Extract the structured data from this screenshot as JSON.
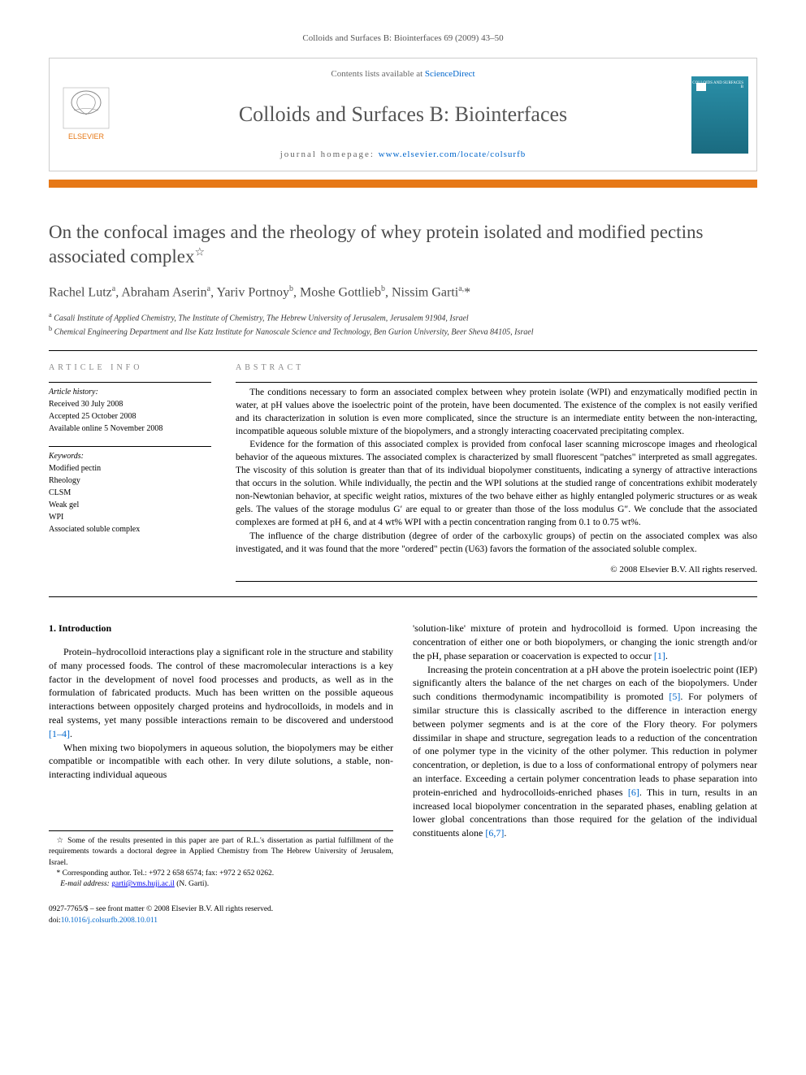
{
  "header": {
    "citation": "Colloids and Surfaces B: Biointerfaces 69 (2009) 43–50"
  },
  "contents_box": {
    "contents_prefix": "Contents lists available at ",
    "contents_link": "ScienceDirect",
    "journal_name": "Colloids and Surfaces B: Biointerfaces",
    "homepage_prefix": "journal homepage: ",
    "homepage_link": "www.elsevier.com/locate/colsurfb",
    "cover_label": "COLLOIDS\nAND\nSURFACES B"
  },
  "title": "On the confocal images and the rheology of whey protein isolated and modified pectins associated complex",
  "title_marker": "☆",
  "authors_html": "Rachel Lutz<sup>a</sup>, Abraham Aserin<sup>a</sup>, Yariv Portnoy<sup>b</sup>, Moshe Gottlieb<sup>b</sup>, Nissim Garti<sup>a,</sup>*",
  "affiliations": {
    "a": "Casali Institute of Applied Chemistry, The Institute of Chemistry, The Hebrew University of Jerusalem, Jerusalem 91904, Israel",
    "b": "Chemical Engineering Department and Ilse Katz Institute for Nanoscale Science and Technology, Ben Gurion University, Beer Sheva 84105, Israel"
  },
  "info": {
    "heading": "ARTICLE INFO",
    "history_h": "Article history:",
    "history": [
      "Received 30 July 2008",
      "Accepted 25 October 2008",
      "Available online 5 November 2008"
    ],
    "keywords_h": "Keywords:",
    "keywords": [
      "Modified pectin",
      "Rheology",
      "CLSM",
      "Weak gel",
      "WPI",
      "Associated soluble complex"
    ]
  },
  "abstract": {
    "heading": "ABSTRACT",
    "p1": "The conditions necessary to form an associated complex between whey protein isolate (WPI) and enzymatically modified pectin in water, at pH values above the isoelectric point of the protein, have been documented. The existence of the complex is not easily verified and its characterization in solution is even more complicated, since the structure is an intermediate entity between the non-interacting, incompatible aqueous soluble mixture of the biopolymers, and a strongly interacting coacervated precipitating complex.",
    "p2": "Evidence for the formation of this associated complex is provided from confocal laser scanning microscope images and rheological behavior of the aqueous mixtures. The associated complex is characterized by small fluorescent \"patches\" interpreted as small aggregates. The viscosity of this solution is greater than that of its individual biopolymer constituents, indicating a synergy of attractive interactions that occurs in the solution. While individually, the pectin and the WPI solutions at the studied range of concentrations exhibit moderately non-Newtonian behavior, at specific weight ratios, mixtures of the two behave either as highly entangled polymeric structures or as weak gels. The values of the storage modulus G′ are equal to or greater than those of the loss modulus G″. We conclude that the associated complexes are formed at pH 6, and at 4 wt% WPI with a pectin concentration ranging from 0.1 to 0.75 wt%.",
    "p3": "The influence of the charge distribution (degree of order of the carboxylic groups) of pectin on the associated complex was also investigated, and it was found that the more \"ordered\" pectin (U63) favors the formation of the associated soluble complex.",
    "copyright": "© 2008 Elsevier B.V. All rights reserved."
  },
  "body": {
    "intro_heading": "1. Introduction",
    "left_p1": "Protein–hydrocolloid interactions play a significant role in the structure and stability of many processed foods. The control of these macromolecular interactions is a key factor in the development of novel food processes and products, as well as in the formulation of fabricated products. Much has been written on the possible aqueous interactions between oppositely charged proteins and hydrocolloids, in models and in real systems, yet many possible interactions remain to be discovered and understood ",
    "left_p1_ref": "[1–4]",
    "left_p1_end": ".",
    "left_p2": "When mixing two biopolymers in aqueous solution, the biopolymers may be either compatible or incompatible with each other. In very dilute solutions, a stable, non-interacting individual aqueous",
    "right_p1a": "'solution-like' mixture of protein and hydrocolloid is formed. Upon increasing the concentration of either one or both biopolymers, or changing the ionic strength and/or the pH, phase separation or coacervation is expected to occur ",
    "right_p1_ref": "[1]",
    "right_p1_end": ".",
    "right_p2a": "Increasing the protein concentration at a pH above the protein isoelectric point (IEP) significantly alters the balance of the net charges on each of the biopolymers. Under such conditions thermodynamic incompatibility is promoted ",
    "right_p2_ref1": "[5]",
    "right_p2b": ". For polymers of similar structure this is classically ascribed to the difference in interaction energy between polymer segments and is at the core of the Flory theory. For polymers dissimilar in shape and structure, segregation leads to a reduction of the concentration of one polymer type in the vicinity of the other polymer. This reduction in polymer concentration, or depletion, is due to a loss of conformational entropy of polymers near an interface. Exceeding a certain polymer concentration leads to phase separation into protein-enriched and hydrocolloids-enriched phases ",
    "right_p2_ref2": "[6]",
    "right_p2c": ". This in turn, results in an increased local biopolymer concentration in the separated phases, enabling gelation at lower global concentrations than those required for the gelation of the individual constituents alone ",
    "right_p2_ref3": "[6,7]",
    "right_p2_end": "."
  },
  "footnotes": {
    "star": "Some of the results presented in this paper are part of R.L.'s dissertation as partial fulfillment of the requirements towards a doctoral degree in Applied Chemistry from The Hebrew University of Jerusalem, Israel.",
    "corr": "Corresponding author. Tel.: +972 2 658 6574; fax: +972 2 652 0262.",
    "email_label": "E-mail address:",
    "email": "garti@vms.huji.ac.il",
    "email_name": "(N. Garti)."
  },
  "bottom": {
    "issn_line": "0927-7765/$ – see front matter © 2008 Elsevier B.V. All rights reserved.",
    "doi_label": "doi:",
    "doi": "10.1016/j.colsurfb.2008.10.011"
  },
  "colors": {
    "orange": "#e67817",
    "link": "#0066cc",
    "teal": "#2a8fa8"
  }
}
